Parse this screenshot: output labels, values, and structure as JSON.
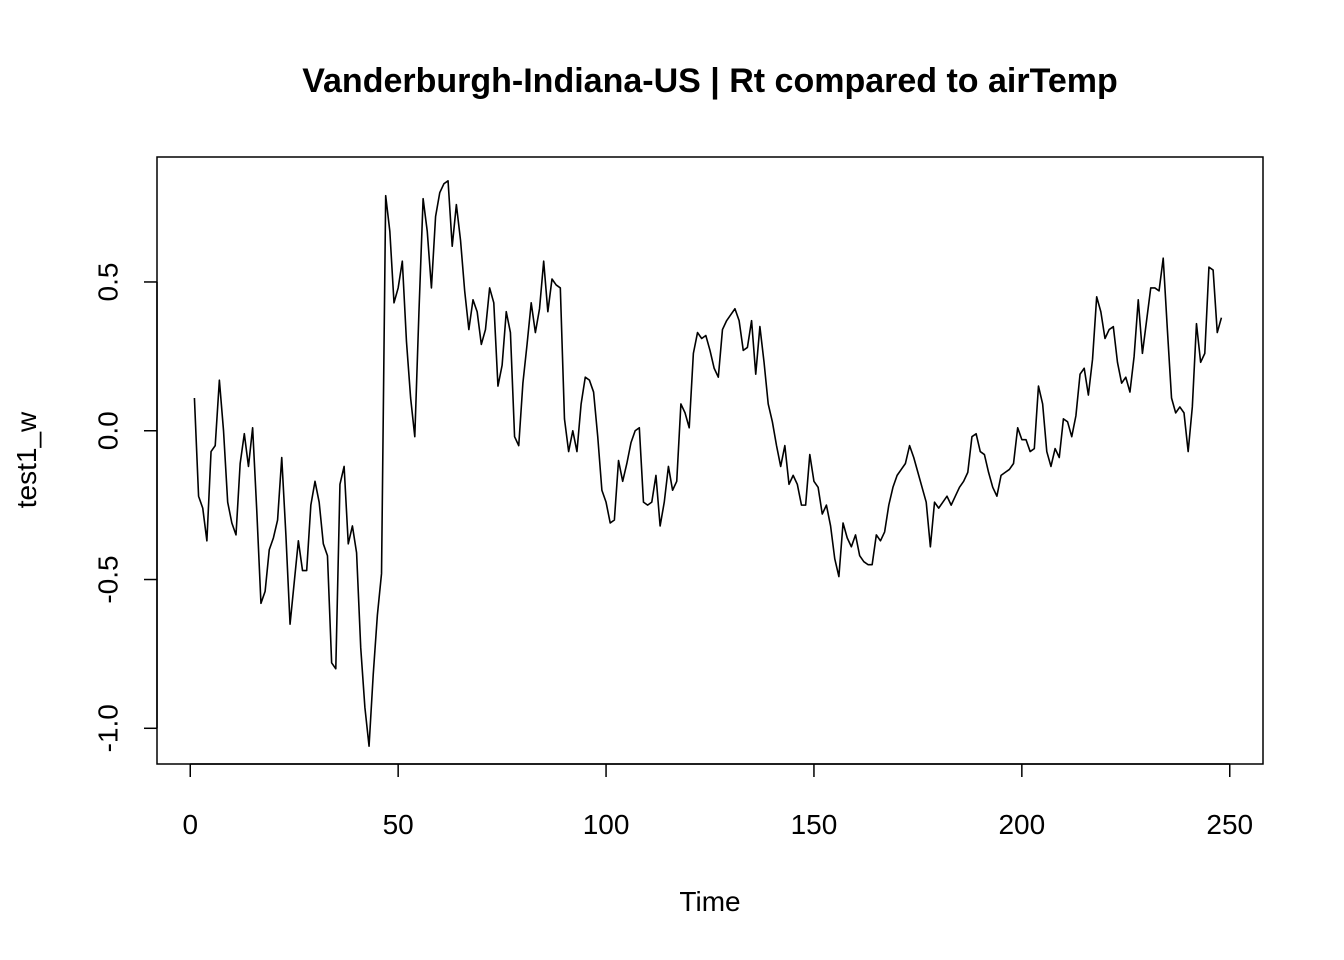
{
  "chart_data": {
    "type": "line",
    "title": "Vanderburgh-Indiana-US | Rt compared to airTemp",
    "xlabel": "Time",
    "ylabel": "test1_w",
    "xlim": [
      -8,
      258
    ],
    "ylim": [
      -1.12,
      0.92
    ],
    "x_ticks": [
      0,
      50,
      100,
      150,
      200,
      250
    ],
    "x_tick_labels": [
      "0",
      "50",
      "100",
      "150",
      "200",
      "250"
    ],
    "y_ticks": [
      -1.0,
      -0.5,
      0.0,
      0.5
    ],
    "y_tick_labels": [
      "-1.0",
      "-0.5",
      "0.0",
      "0.5"
    ],
    "grid": false,
    "legend": "none",
    "line_color": "#000000",
    "series": [
      {
        "x_start": 1,
        "x_step": 1,
        "values": [
          0.11,
          -0.22,
          -0.26,
          -0.37,
          -0.07,
          -0.05,
          0.17,
          0.0,
          -0.24,
          -0.31,
          -0.35,
          -0.11,
          -0.01,
          -0.12,
          0.01,
          -0.27,
          -0.58,
          -0.54,
          -0.4,
          -0.36,
          -0.3,
          -0.09,
          -0.35,
          -0.65,
          -0.51,
          -0.37,
          -0.47,
          -0.47,
          -0.25,
          -0.17,
          -0.24,
          -0.38,
          -0.42,
          -0.78,
          -0.8,
          -0.18,
          -0.12,
          -0.38,
          -0.32,
          -0.41,
          -0.73,
          -0.93,
          -1.06,
          -0.82,
          -0.62,
          -0.48,
          0.79,
          0.67,
          0.43,
          0.48,
          0.57,
          0.3,
          0.11,
          -0.02,
          0.4,
          0.78,
          0.67,
          0.48,
          0.72,
          0.8,
          0.83,
          0.84,
          0.62,
          0.76,
          0.64,
          0.47,
          0.34,
          0.44,
          0.4,
          0.29,
          0.34,
          0.48,
          0.43,
          0.15,
          0.22,
          0.4,
          0.33,
          -0.02,
          -0.05,
          0.16,
          0.29,
          0.43,
          0.33,
          0.41,
          0.57,
          0.4,
          0.51,
          0.49,
          0.48,
          0.04,
          -0.07,
          0.0,
          -0.07,
          0.09,
          0.18,
          0.17,
          0.13,
          -0.02,
          -0.2,
          -0.24,
          -0.31,
          -0.3,
          -0.1,
          -0.17,
          -0.11,
          -0.04,
          0.0,
          0.01,
          -0.24,
          -0.25,
          -0.24,
          -0.15,
          -0.32,
          -0.24,
          -0.12,
          -0.2,
          -0.17,
          0.09,
          0.06,
          0.01,
          0.26,
          0.33,
          0.31,
          0.32,
          0.27,
          0.21,
          0.18,
          0.34,
          0.37,
          0.39,
          0.41,
          0.37,
          0.27,
          0.28,
          0.37,
          0.19,
          0.35,
          0.23,
          0.09,
          0.03,
          -0.05,
          -0.12,
          -0.05,
          -0.18,
          -0.15,
          -0.18,
          -0.25,
          -0.25,
          -0.08,
          -0.17,
          -0.19,
          -0.28,
          -0.25,
          -0.32,
          -0.43,
          -0.49,
          -0.31,
          -0.36,
          -0.39,
          -0.35,
          -0.42,
          -0.44,
          -0.45,
          -0.45,
          -0.35,
          -0.37,
          -0.34,
          -0.25,
          -0.19,
          -0.15,
          -0.13,
          -0.11,
          -0.05,
          -0.09,
          -0.14,
          -0.19,
          -0.24,
          -0.39,
          -0.24,
          -0.26,
          -0.24,
          -0.22,
          -0.25,
          -0.22,
          -0.19,
          -0.17,
          -0.14,
          -0.02,
          -0.01,
          -0.07,
          -0.08,
          -0.14,
          -0.19,
          -0.22,
          -0.15,
          -0.14,
          -0.13,
          -0.11,
          0.01,
          -0.03,
          -0.03,
          -0.07,
          -0.06,
          0.15,
          0.09,
          -0.07,
          -0.12,
          -0.06,
          -0.09,
          0.04,
          0.03,
          -0.02,
          0.05,
          0.19,
          0.21,
          0.12,
          0.24,
          0.45,
          0.4,
          0.31,
          0.34,
          0.35,
          0.23,
          0.16,
          0.18,
          0.13,
          0.25,
          0.44,
          0.26,
          0.37,
          0.48,
          0.48,
          0.47,
          0.58,
          0.34,
          0.11,
          0.06,
          0.08,
          0.06,
          -0.07,
          0.08,
          0.36,
          0.23,
          0.26,
          0.55,
          0.54,
          0.33,
          0.38
        ]
      }
    ]
  }
}
